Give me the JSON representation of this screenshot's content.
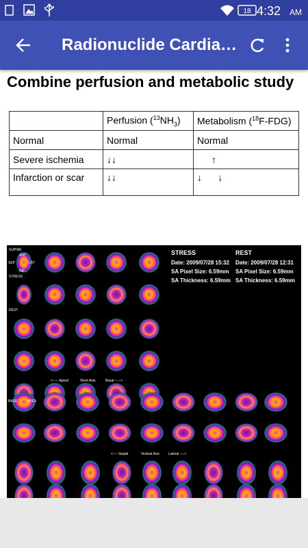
{
  "status_bar": {
    "battery": "18",
    "time": "4:32",
    "time_suffix": "AM"
  },
  "app_bar": {
    "title": "Radionuclide Cardia…"
  },
  "heading": "Combine perfusion and metabolic study",
  "table": {
    "header": [
      [
        {
          "text": "Perfusion ("
        },
        {
          "sup": "13"
        },
        {
          "text": "NH"
        },
        {
          "sub": "3"
        },
        {
          "text": ")"
        }
      ],
      [
        {
          "text": "Metabolism ("
        },
        {
          "sup": "18"
        },
        {
          "text": "F-FDG)"
        }
      ]
    ],
    "rows": [
      [
        "Normal",
        "Normal",
        "Normal"
      ],
      [
        "Severe ischemia",
        "↓↓",
        "↑"
      ],
      [
        "Infarction or scar",
        "↓↓",
        "↓      ↓"
      ]
    ]
  },
  "figure": {
    "stress": {
      "label": "STRESS",
      "date": "Date: 2009/07/28 15:32",
      "pixel": "SA Pixel Size: 6.59mm",
      "thickness": "SA Thickness: 6.59mm"
    },
    "rest": {
      "label": "REST",
      "date": "Date: 2009/07/28 12:31",
      "pixel": "SA Pixel Size: 6.59mm",
      "thickness": "SA Thickness: 6.59mm"
    },
    "short_axis": [
      "<----- Apical",
      "Short Axis",
      "Basal ----->"
    ],
    "vertical_axis": [
      "<---- Septal",
      "Vertical Axis",
      "Lateral ---->"
    ],
    "side": {
      "supine": "SUPINE",
      "ant": "ANT",
      "sep": "SEP",
      "lat": "LAT",
      "inf": "INF",
      "stress": "STRESS",
      "rest": "REST",
      "base": "BASE",
      "apex": "APEX"
    }
  }
}
